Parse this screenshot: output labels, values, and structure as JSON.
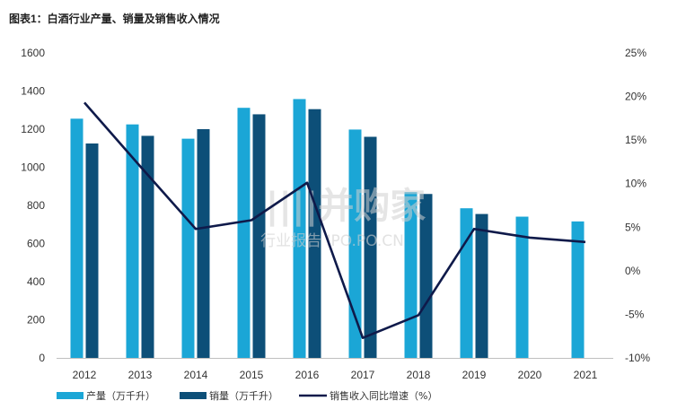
{
  "chart_data": {
    "type": "bar",
    "title": "图表1：白酒行业产量、销量及销售收入情况",
    "categories": [
      "2012",
      "2013",
      "2014",
      "2015",
      "2016",
      "2017",
      "2018",
      "2019",
      "2020",
      "2021"
    ],
    "y_left": {
      "min": 0,
      "max": 1600,
      "ticks": [
        "0",
        "200",
        "400",
        "600",
        "800",
        "1000",
        "1200",
        "1400",
        "1600"
      ]
    },
    "y_right": {
      "min": -10,
      "max": 25,
      "ticks": [
        "-10%",
        "-5%",
        "0%",
        "5%",
        "10%",
        "15%",
        "20%",
        "25%"
      ]
    },
    "series": [
      {
        "name": "产量（万千升）",
        "type": "bar",
        "color": "#1ba6d6",
        "values": [
          1255,
          1225,
          1150,
          1312,
          1358,
          1198,
          870,
          785,
          741,
          716
        ]
      },
      {
        "name": "销量（万千升）",
        "type": "bar",
        "color": "#0d4f78",
        "values": [
          1125,
          1165,
          1200,
          1278,
          1305,
          1160,
          860,
          755,
          null,
          null
        ]
      },
      {
        "name": "销售收入同比增速（%）",
        "type": "line",
        "axis": "right",
        "color": "#0f1a4a",
        "values": [
          19.3,
          12.0,
          4.8,
          5.8,
          10.1,
          -7.7,
          -5.1,
          4.8,
          3.8,
          3.3
        ]
      }
    ],
    "legend_position": "bottom-left",
    "grid": false
  },
  "watermark": {
    "main": "||||并购家",
    "sub": "行业报告 IPO.PO.CN"
  }
}
